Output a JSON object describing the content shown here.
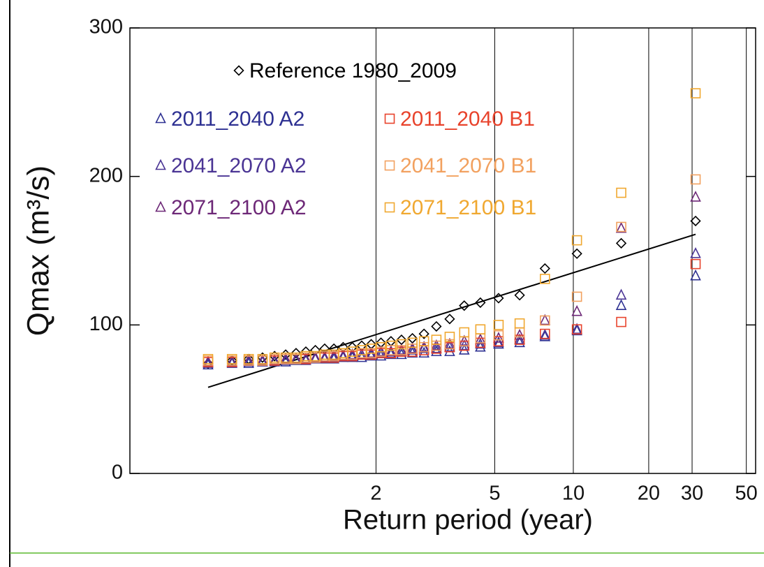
{
  "chart_data": {
    "type": "scatter",
    "x_label": "Return period (year)",
    "y_label": "Qmax (m³/s)",
    "xscale": "gumbel",
    "xlim": [
      1.0007,
      54.6
    ],
    "xticks": [
      2,
      5,
      10,
      20,
      30,
      50
    ],
    "xgrid": true,
    "ylim": [
      0,
      300
    ],
    "yticks": [
      0,
      100,
      200,
      300
    ],
    "x": [
      31,
      15.5,
      10.333,
      7.75,
      6.2,
      5.167,
      4.429,
      3.875,
      3.444,
      3.1,
      2.818,
      2.583,
      2.385,
      2.214,
      2.067,
      1.938,
      1.824,
      1.722,
      1.632,
      1.55,
      1.476,
      1.409,
      1.348,
      1.292,
      1.24,
      1.192,
      1.148,
      1.107,
      1.069,
      1.033
    ],
    "fit": {
      "color": "#000000",
      "x": [
        1.033,
        31
      ],
      "values": [
        58,
        161
      ]
    },
    "series": [
      {
        "name": "Reference 1980_2009",
        "color": "#000000",
        "marker": "diamond",
        "values": [
          170,
          155,
          148,
          138,
          120,
          118,
          115,
          113,
          104,
          99,
          94,
          91,
          90,
          89,
          88,
          87,
          86,
          85,
          85,
          84,
          84,
          83,
          82,
          81,
          80,
          79,
          78,
          77,
          76,
          74
        ]
      },
      {
        "name": "2011_2040 A2",
        "color": "#2e3192",
        "marker": "triangle",
        "values": [
          133,
          113,
          96,
          92,
          88,
          87,
          85,
          83,
          82,
          82,
          81,
          81,
          80,
          80,
          79,
          79,
          78,
          78,
          78,
          77,
          77,
          77,
          76,
          76,
          75,
          75,
          75,
          74,
          74,
          73
        ]
      },
      {
        "name": "2041_2070 A2",
        "color": "#4a3494",
        "marker": "triangle",
        "values": [
          148,
          120,
          97,
          93,
          90,
          88,
          87,
          86,
          85,
          84,
          84,
          83,
          82,
          81,
          81,
          80,
          80,
          79,
          79,
          78,
          78,
          77,
          77,
          77,
          76,
          76,
          75,
          75,
          75,
          74
        ]
      },
      {
        "name": "2071_2100 A2",
        "color": "#6d2877",
        "marker": "triangle",
        "values": [
          186,
          165,
          109,
          103,
          93,
          91,
          90,
          89,
          87,
          86,
          85,
          84,
          83,
          82,
          82,
          81,
          80,
          80,
          79,
          79,
          78,
          78,
          77,
          77,
          77,
          76,
          76,
          76,
          75,
          75
        ]
      },
      {
        "name": "2011_2040 B1",
        "color": "#e8432c",
        "marker": "square",
        "values": [
          141,
          102,
          97,
          94,
          90,
          89,
          88,
          86,
          85,
          84,
          83,
          82,
          82,
          81,
          81,
          80,
          80,
          79,
          79,
          78,
          78,
          78,
          77,
          77,
          77,
          76,
          76,
          76,
          75,
          75
        ]
      },
      {
        "name": "2041_2070 B1",
        "color": "#f2a15f",
        "marker": "square",
        "values": [
          198,
          166,
          119,
          103,
          95,
          93,
          91,
          89,
          87,
          86,
          85,
          84,
          83,
          83,
          82,
          81,
          81,
          80,
          80,
          79,
          79,
          78,
          78,
          77,
          77,
          77,
          76,
          76,
          76,
          76
        ]
      },
      {
        "name": "2071_2100 B1",
        "color": "#f0a830",
        "marker": "square",
        "values": [
          256,
          189,
          157,
          131,
          101,
          100,
          97,
          95,
          92,
          90,
          89,
          88,
          87,
          86,
          85,
          84,
          83,
          82,
          81,
          80,
          80,
          79,
          79,
          78,
          78,
          78,
          77,
          77,
          77,
          77
        ]
      }
    ]
  }
}
